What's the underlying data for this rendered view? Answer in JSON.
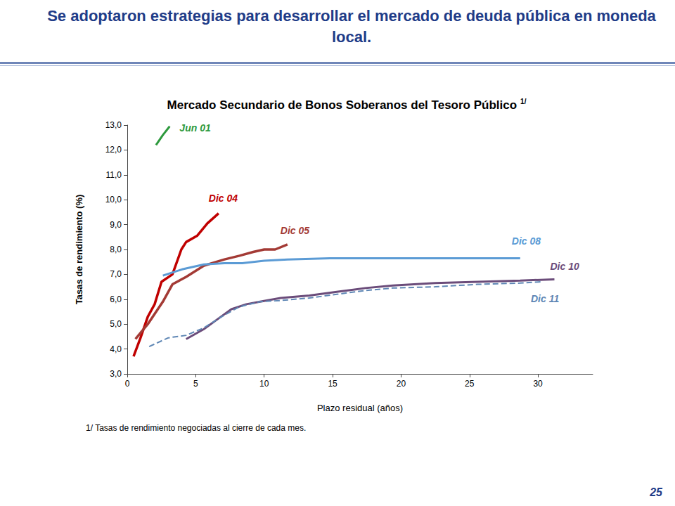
{
  "page": {
    "heading": "Se adoptaron estrategias para desarrollar el mercado de deuda pública en moneda local.",
    "number": 25
  },
  "chart_data": {
    "type": "line",
    "title": "Mercado Secundario de Bonos Soberanos del Tesoro Público",
    "title_superscript": "1/",
    "x_label": "Plazo residual (años)",
    "y_label": "Tasas de rendimiento (%)",
    "footnote": "1/ Tasas de rendimiento negociadas al cierre de cada mes.",
    "xlim": [
      0,
      34
    ],
    "xticks": [
      0,
      5,
      10,
      15,
      20,
      25,
      30
    ],
    "ylim": [
      3,
      13
    ],
    "yticks": [
      {
        "value": 3,
        "label": "3,0"
      },
      {
        "value": 4,
        "label": "4,0"
      },
      {
        "value": 5,
        "label": "5,0"
      },
      {
        "value": 6,
        "label": "6,0"
      },
      {
        "value": 7,
        "label": "7,0"
      },
      {
        "value": 8,
        "label": "8,0"
      },
      {
        "value": 9,
        "label": "9,0"
      },
      {
        "value": 10,
        "label": "10,0"
      },
      {
        "value": 11,
        "label": "11,0"
      },
      {
        "value": 12,
        "label": "12,0"
      },
      {
        "value": 13,
        "label": "13,0"
      }
    ],
    "grid": false,
    "series": [
      {
        "name": "Jun 01",
        "color": "#2e9a3e",
        "line_style": "solid",
        "x": [
          2.1,
          2.6,
          3.1
        ],
        "values": [
          12.2,
          12.6,
          12.95
        ]
      },
      {
        "name": "Dic 04",
        "color": "#c00000",
        "line_style": "solid",
        "x": [
          0.46,
          0.97,
          1.5,
          2.0,
          2.5,
          3.3,
          3.95,
          4.3,
          5.1,
          5.85,
          6.67
        ],
        "values": [
          3.7,
          4.45,
          5.3,
          5.8,
          6.7,
          7.0,
          8.0,
          8.3,
          8.55,
          9.05,
          9.45
        ]
      },
      {
        "name": "Dic 05",
        "color": "#a33a35",
        "line_style": "solid",
        "x": [
          0.6,
          1.5,
          2.6,
          3.3,
          4.3,
          5.6,
          7.1,
          8.2,
          9.2,
          10.0,
          10.8,
          11.7
        ],
        "values": [
          4.4,
          5.0,
          5.9,
          6.6,
          6.9,
          7.35,
          7.6,
          7.75,
          7.9,
          8.0,
          8.0,
          8.2
        ]
      },
      {
        "name": "Dic 08",
        "color": "#5b9bd5",
        "line_style": "solid",
        "x": [
          2.6,
          4.0,
          5.6,
          7.1,
          8.4,
          10.0,
          11.7,
          14.8,
          18.9,
          24.0,
          28.7
        ],
        "values": [
          6.95,
          7.2,
          7.4,
          7.45,
          7.45,
          7.55,
          7.6,
          7.65,
          7.65,
          7.65,
          7.65
        ]
      },
      {
        "name": "Dic 10",
        "color": "#6b4c7a",
        "line_style": "solid",
        "x": [
          4.3,
          5.6,
          6.6,
          7.6,
          8.7,
          9.7,
          11.2,
          13.3,
          15.3,
          17.4,
          19.4,
          22.5,
          25.6,
          28.7,
          31.2
        ],
        "values": [
          4.4,
          4.8,
          5.2,
          5.6,
          5.8,
          5.9,
          6.05,
          6.15,
          6.3,
          6.45,
          6.55,
          6.65,
          6.7,
          6.75,
          6.8
        ]
      },
      {
        "name": "Dic 11",
        "color": "#5f87b5",
        "line_style": "dashed",
        "x": [
          1.6,
          3.0,
          4.3,
          5.6,
          6.9,
          8.2,
          9.7,
          11.2,
          13.3,
          15.3,
          17.4,
          19.4,
          22.5,
          25.6,
          28.7,
          30.2
        ],
        "values": [
          4.1,
          4.45,
          4.55,
          4.85,
          5.3,
          5.7,
          5.9,
          5.95,
          6.05,
          6.2,
          6.35,
          6.45,
          6.5,
          6.6,
          6.65,
          6.7
        ]
      }
    ]
  }
}
